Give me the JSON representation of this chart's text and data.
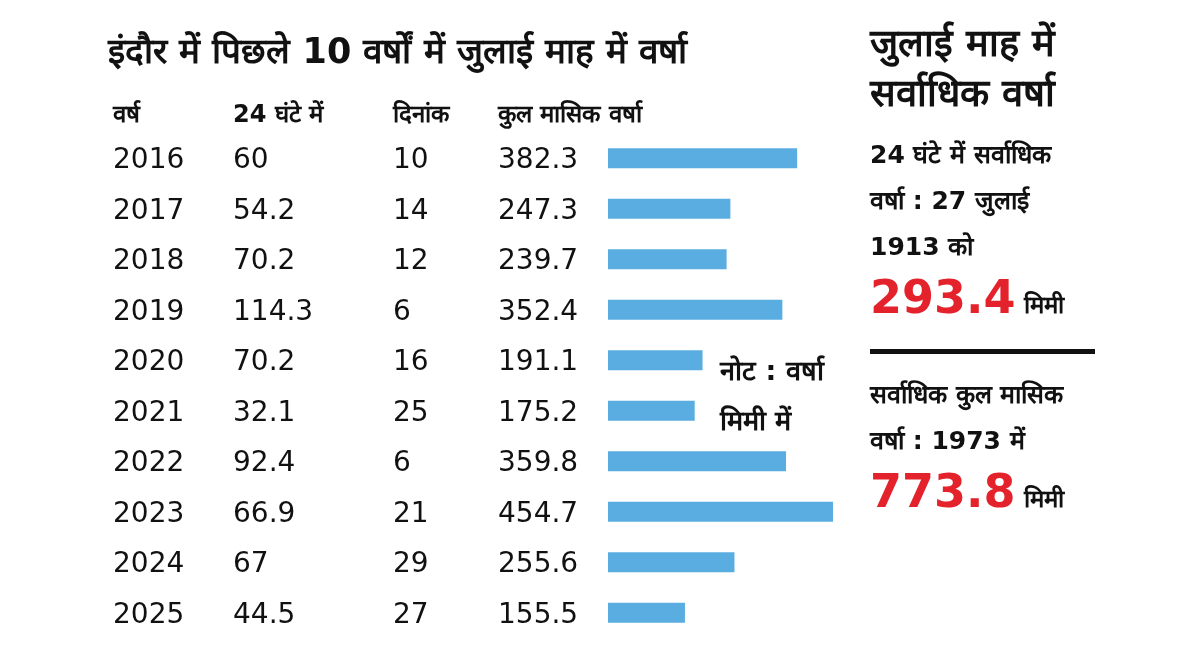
{
  "chart_data": [
    {
      "type": "bar",
      "orientation": "horizontal",
      "title": "इंदौर में पिछले 10 वर्षों में जुलाई माह में वर्षा",
      "ylabel": "वर्ष",
      "xlabel": "कुल मासिक वर्षा",
      "categories": [
        "2016",
        "2017",
        "2018",
        "2019",
        "2020",
        "2021",
        "2022",
        "2023",
        "2024",
        "2025"
      ],
      "values": [
        382.3,
        247.3,
        239.7,
        352.4,
        191.1,
        175.2,
        359.8,
        454.7,
        255.6,
        155.5
      ],
      "color": "#5aade0",
      "data_labels": true,
      "annotations": [
        "24 घंटे में",
        "दिनांक",
        "नोट : वर्षा मिमी में",
        "60",
        "10",
        "54.2",
        "14",
        "70.2",
        "12",
        "114.3",
        "6",
        "70.2",
        "16",
        "32.1",
        "25",
        "92.4",
        "6",
        "66.9",
        "21",
        "67",
        "29",
        "44.5",
        "27"
      ]
    },
    {
      "type": "other",
      "title": "जुलाई माह में सर्वाधिक वर्षा",
      "annotations": [
        "24 घंटे में सर्वाधिक वर्षा : 27 जुलाई 1913 को",
        "293.4 मिमी",
        "सर्वाधिक कुल मासिक वर्षा : 1973 में",
        "773.8 मिमी"
      ]
    }
  ]
}
